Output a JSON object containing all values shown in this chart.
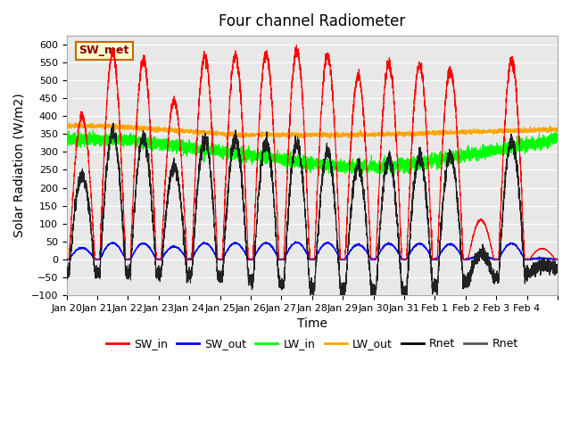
{
  "title": "Four channel Radiometer",
  "xlabel": "Time",
  "ylabel": "Solar Radiation (W/m2)",
  "ylim": [
    -100,
    625
  ],
  "yticks": [
    -100,
    -50,
    0,
    50,
    100,
    150,
    200,
    250,
    300,
    350,
    400,
    450,
    500,
    550,
    600
  ],
  "bg_color": "#e8e8e8",
  "box_label": "SW_met",
  "box_facecolor": "#ffffcc",
  "box_edgecolor": "#cc6600",
  "legend_entries": [
    "SW_in",
    "SW_out",
    "LW_in",
    "LW_out",
    "Rnet",
    "Rnet"
  ],
  "legend_colors": [
    "red",
    "blue",
    "lime",
    "#FFA500",
    "black",
    "#555555"
  ],
  "x_tick_positions": [
    0,
    1,
    2,
    3,
    4,
    5,
    6,
    7,
    8,
    9,
    10,
    11,
    12,
    13,
    14,
    15,
    16
  ],
  "x_tick_labels": [
    "Jan 20",
    "Jan 21",
    "Jan 22",
    "Jan 23",
    "Jan 24",
    "Jan 25",
    "Jan 26",
    "Jan 27",
    "Jan 28",
    "Jan 29",
    "Jan 30",
    "Jan 31",
    "Feb 1",
    "Feb 2",
    "Feb 3",
    "Feb 4",
    ""
  ],
  "n_days": 16,
  "sw_in_peaks": [
    400,
    575,
    555,
    440,
    565,
    570,
    575,
    585,
    570,
    510,
    545,
    545,
    530,
    110,
    555,
    30
  ],
  "grid_color": "white",
  "line_width": 0.8
}
